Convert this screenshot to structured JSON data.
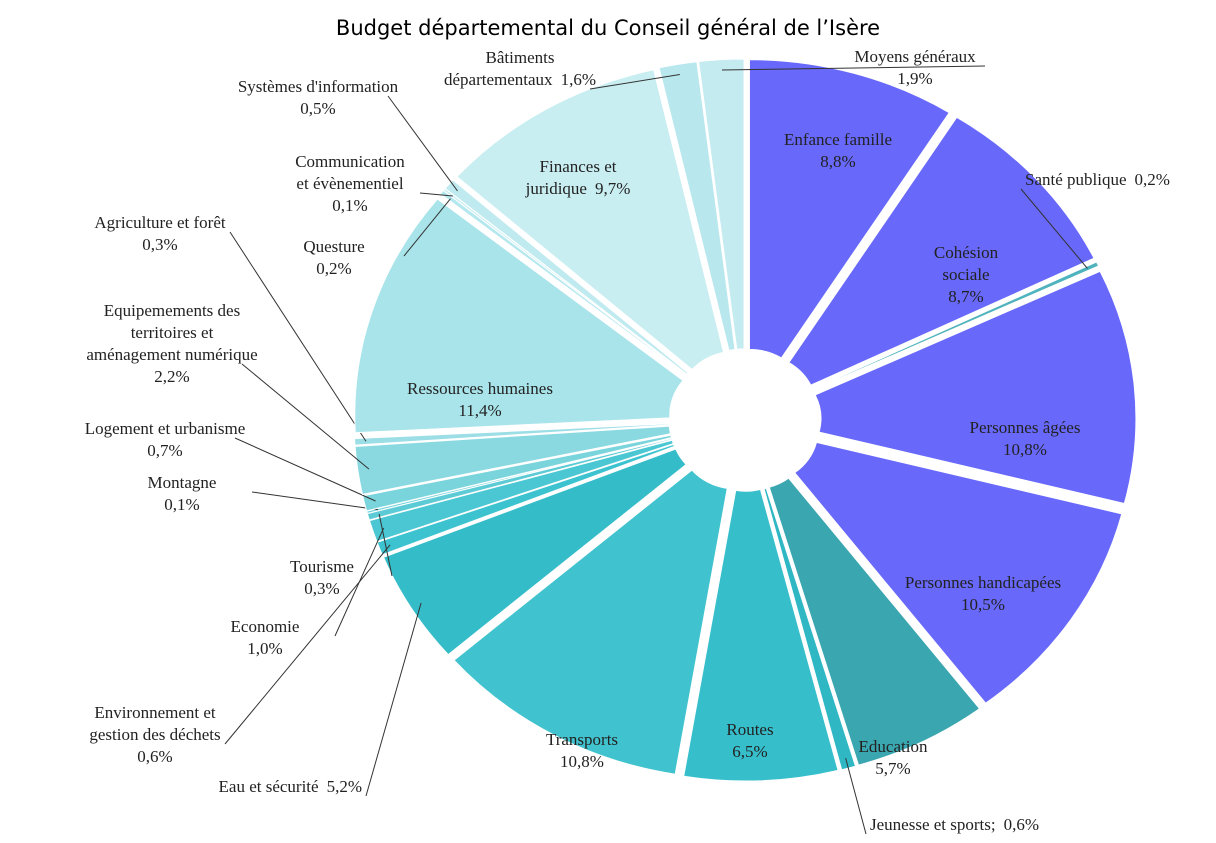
{
  "chart_data": {
    "type": "pie",
    "title": "Budget départemental du Conseil général de l’Isère",
    "categories": [
      "Enfance famille",
      "Cohésion\nsociale",
      "Santé publique",
      "Personnes âgées",
      "Personnes handicapées",
      "Education",
      "Jeunesse et sports;",
      "Routes",
      "Transports",
      "Eau et sécurité",
      "Environnement et\ngestion des déchets",
      "Economie",
      "Tourisme",
      "Montagne",
      "Logement et urbanisme",
      "Equipemements des\nterritoires et\naménagement numérique",
      "Agriculture et forêt",
      "Ressources humaines",
      "Questure",
      "Communication\net évènementiel",
      "Systèmes d'information",
      "Finances et\njuridique",
      "Bâtiments\ndépartementaux",
      "Moyens généraux"
    ],
    "values": [
      8.8,
      8.7,
      0.2,
      10.8,
      10.5,
      5.7,
      0.6,
      6.5,
      10.8,
      5.2,
      0.6,
      1.0,
      0.3,
      0.1,
      0.7,
      2.2,
      0.3,
      11.4,
      0.2,
      0.1,
      0.5,
      9.7,
      1.6,
      1.9
    ],
    "value_labels": [
      "8,8%",
      "8,7%",
      "0,2%",
      "10,8%",
      "10,5%",
      "5,7%",
      "0,6%",
      "6,5%",
      "10,8%",
      "5,2%",
      "0,6%",
      "1,0%",
      "0,3%",
      "0,1%",
      "0,7%",
      "2,2%",
      "0,3%",
      "11,4%",
      "0,2%",
      "0,1%",
      "0,5%",
      "9,7%",
      "1,6%",
      "1,9%"
    ],
    "colors": [
      "#6868fb",
      "#6868fb",
      "#4fb3bd",
      "#6868fb",
      "#6868fb",
      "#3aa6b0",
      "#2fb7c4",
      "#36bfcb",
      "#40c3ce",
      "#35bcc9",
      "#3cc3cf",
      "#4ac7d2",
      "#5ccbd5",
      "#6cd0d9",
      "#7ad4dc",
      "#8ad9e1",
      "#9cdee5",
      "#a8e4ea",
      "#b5e8ee",
      "#c2ecf1",
      "#bfeaf0",
      "#c9eef2",
      "#b8e7ee",
      "#c4ebf0"
    ]
  }
}
